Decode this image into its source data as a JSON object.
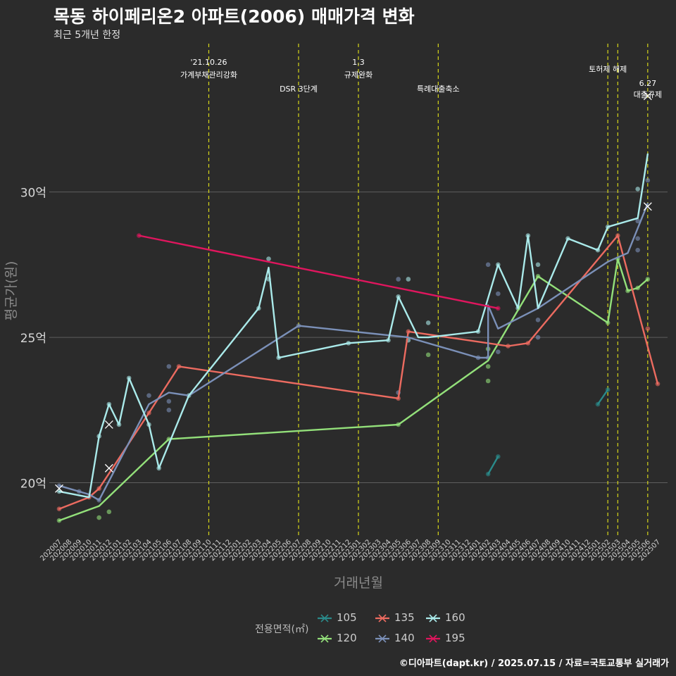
{
  "title": "목동 하이페리온2 아파트(2006) 매매가격 변화",
  "subtitle": "최근 5개년 한정",
  "caption": "©디아파트(dapt.kr) / 2025.07.15 / 자료=국토교통부 실거래가",
  "legend_title": "전용면적(㎡)",
  "chart_data": {
    "type": "line",
    "xlabel": "거래년월",
    "ylabel": "평균가(원)",
    "ylim": [
      18.1,
      35.1
    ],
    "yticks": [
      20,
      25,
      30
    ],
    "ytick_labels": [
      "20억",
      "25억",
      "30억"
    ],
    "categories": [
      "202007",
      "202008",
      "202009",
      "202010",
      "202011",
      "202012",
      "202101",
      "202102",
      "202103",
      "202104",
      "202105",
      "202106",
      "202107",
      "202108",
      "202109",
      "202110",
      "202111",
      "202112",
      "202201",
      "202202",
      "202203",
      "202204",
      "202205",
      "202206",
      "202207",
      "202208",
      "202209",
      "202210",
      "202211",
      "202212",
      "202301",
      "202302",
      "202303",
      "202304",
      "202305",
      "202306",
      "202307",
      "202308",
      "202309",
      "202310",
      "202311",
      "202312",
      "202401",
      "202402",
      "202403",
      "202404",
      "202405",
      "202406",
      "202407",
      "202408",
      "202409",
      "202410",
      "202411",
      "202412",
      "202501",
      "202502",
      "202503",
      "202504",
      "202505",
      "202506",
      "202507"
    ],
    "events": [
      {
        "month": "202110",
        "label1": "'21.10.26",
        "label2": "가계부채관리강화",
        "row": "top"
      },
      {
        "month": "202207",
        "label1": "",
        "label2": "DSR 3단계",
        "row": "low"
      },
      {
        "month": "202301",
        "label1": "1.3",
        "label2": "규제완화",
        "row": "top"
      },
      {
        "month": "202309",
        "label1": "",
        "label2": "특례대출축소",
        "row": "low"
      },
      {
        "month": "202502",
        "label1": "",
        "label2": "토허제 해제",
        "row": "mid"
      },
      {
        "month": "202503",
        "label1": "",
        "label2": "",
        "row": "none"
      },
      {
        "month": "202506",
        "label1": "6.27",
        "label2": "대출규제",
        "row": "right"
      }
    ],
    "series": [
      {
        "name": "105",
        "color": "#2a8a8a",
        "line": [
          [
            "202402",
            20.3
          ],
          [
            "202403",
            20.9
          ]
        ],
        "line2": [
          [
            "202501",
            22.7
          ],
          [
            "202502",
            23.2
          ]
        ],
        "points": [
          [
            "202402",
            20.3
          ],
          [
            "202403",
            20.9
          ],
          [
            "202501",
            22.7
          ],
          [
            "202502",
            23.2
          ]
        ],
        "crosses": []
      },
      {
        "name": "120",
        "color": "#93e07a",
        "line": [
          [
            "202007",
            18.7
          ],
          [
            "202011",
            19.2
          ],
          [
            "202106",
            21.5
          ],
          [
            "202305",
            22.0
          ],
          [
            "202402",
            24.2
          ],
          [
            "202407",
            27.1
          ],
          [
            "202502",
            25.5
          ],
          [
            "202503",
            27.7
          ],
          [
            "202504",
            26.6
          ],
          [
            "202505",
            26.7
          ],
          [
            "202506",
            27.0
          ]
        ],
        "points": [
          [
            "202007",
            18.7
          ],
          [
            "202011",
            18.8
          ],
          [
            "202012",
            19.0
          ],
          [
            "202106",
            21.5
          ],
          [
            "202305",
            22.0
          ],
          [
            "202308",
            24.4
          ],
          [
            "202402",
            23.5
          ],
          [
            "202402",
            24.0
          ],
          [
            "202402",
            24.6
          ],
          [
            "202407",
            27.1
          ],
          [
            "202502",
            25.5
          ],
          [
            "202503",
            27.7
          ],
          [
            "202504",
            26.6
          ],
          [
            "202505",
            26.7
          ],
          [
            "202506",
            27.0
          ]
        ],
        "crosses": []
      },
      {
        "name": "135",
        "color": "#ec6b60",
        "line": [
          [
            "202007",
            19.1
          ],
          [
            "202010",
            19.5
          ],
          [
            "202011",
            19.8
          ],
          [
            "202104",
            22.4
          ],
          [
            "202107",
            24.0
          ],
          [
            "202305",
            22.9
          ],
          [
            "202306",
            25.2
          ],
          [
            "202404",
            24.7
          ],
          [
            "202406",
            24.8
          ],
          [
            "202503",
            28.5
          ],
          [
            "202507",
            23.4
          ]
        ],
        "points": [
          [
            "202007",
            19.1
          ],
          [
            "202010",
            19.5
          ],
          [
            "202011",
            19.8
          ],
          [
            "202104",
            22.4
          ],
          [
            "202107",
            24.0
          ],
          [
            "202305",
            22.9
          ],
          [
            "202306",
            25.2
          ],
          [
            "202404",
            24.7
          ],
          [
            "202406",
            24.8
          ],
          [
            "202503",
            28.5
          ],
          [
            "202506",
            25.3
          ],
          [
            "202507",
            23.4
          ]
        ],
        "crosses": []
      },
      {
        "name": "140",
        "color": "#7b90b8",
        "line": [
          [
            "202007",
            19.9
          ],
          [
            "202010",
            19.6
          ],
          [
            "202011",
            19.4
          ],
          [
            "202104",
            22.7
          ],
          [
            "202106",
            23.1
          ],
          [
            "202108",
            23.0
          ],
          [
            "202207",
            25.4
          ],
          [
            "202306",
            25.0
          ],
          [
            "202401",
            24.3
          ],
          [
            "202402",
            24.3
          ],
          [
            "202402",
            26.1
          ],
          [
            "202403",
            25.3
          ],
          [
            "202407",
            26.0
          ],
          [
            "202502",
            27.6
          ],
          [
            "202504",
            27.9
          ],
          [
            "202506",
            29.6
          ]
        ],
        "points": [
          [
            "202007",
            19.9
          ],
          [
            "202009",
            19.7
          ],
          [
            "202011",
            19.4
          ],
          [
            "202104",
            23.0
          ],
          [
            "202106",
            24.0
          ],
          [
            "202106",
            22.8
          ],
          [
            "202106",
            22.5
          ],
          [
            "202207",
            25.4
          ],
          [
            "202305",
            27.0
          ],
          [
            "202305",
            23.1
          ],
          [
            "202401",
            24.3
          ],
          [
            "202402",
            24.3
          ],
          [
            "202402",
            27.5
          ],
          [
            "202403",
            26.5
          ],
          [
            "202403",
            24.5
          ],
          [
            "202407",
            25.6
          ],
          [
            "202407",
            25.0
          ],
          [
            "202505",
            28.0
          ],
          [
            "202505",
            28.4
          ],
          [
            "202505",
            29.0
          ],
          [
            "202506",
            30.4
          ]
        ],
        "crosses": []
      },
      {
        "name": "160",
        "color": "#aaeaea",
        "line": [
          [
            "202007",
            19.7
          ],
          [
            "202010",
            19.5
          ],
          [
            "202011",
            21.6
          ],
          [
            "202012",
            22.7
          ],
          [
            "202101",
            22.0
          ],
          [
            "202102",
            23.6
          ],
          [
            "202104",
            22.0
          ],
          [
            "202105",
            20.5
          ],
          [
            "202108",
            23.0
          ],
          [
            "202203",
            26.0
          ],
          [
            "202204",
            27.4
          ],
          [
            "202205",
            24.3
          ],
          [
            "202212",
            24.8
          ],
          [
            "202304",
            24.9
          ],
          [
            "202305",
            26.4
          ],
          [
            "202307",
            25.0
          ],
          [
            "202308",
            25.0
          ],
          [
            "202401",
            25.2
          ],
          [
            "202403",
            27.5
          ],
          [
            "202405",
            26.0
          ],
          [
            "202406",
            28.5
          ],
          [
            "202407",
            26.0
          ],
          [
            "202410",
            28.4
          ],
          [
            "202501",
            28.0
          ],
          [
            "202502",
            28.8
          ],
          [
            "202505",
            29.1
          ],
          [
            "202506",
            31.3
          ]
        ],
        "points": [
          [
            "202007",
            19.7
          ],
          [
            "202011",
            21.6
          ],
          [
            "202012",
            22.7
          ],
          [
            "202101",
            22.0
          ],
          [
            "202102",
            23.6
          ],
          [
            "202104",
            22.0
          ],
          [
            "202105",
            20.5
          ],
          [
            "202108",
            23.0
          ],
          [
            "202203",
            26.0
          ],
          [
            "202204",
            27.7
          ],
          [
            "202204",
            27.0
          ],
          [
            "202205",
            24.3
          ],
          [
            "202212",
            24.8
          ],
          [
            "202304",
            24.9
          ],
          [
            "202305",
            26.4
          ],
          [
            "202306",
            27.0
          ],
          [
            "202306",
            24.9
          ],
          [
            "202308",
            25.5
          ],
          [
            "202401",
            25.2
          ],
          [
            "202403",
            27.5
          ],
          [
            "202405",
            26.0
          ],
          [
            "202406",
            28.5
          ],
          [
            "202407",
            27.5
          ],
          [
            "202410",
            28.4
          ],
          [
            "202501",
            28.0
          ],
          [
            "202502",
            28.8
          ],
          [
            "202505",
            30.1
          ]
        ],
        "crosses": [
          [
            "202007",
            19.8
          ],
          [
            "202012",
            22.0
          ],
          [
            "202012",
            20.5
          ],
          [
            "202506",
            29.5
          ],
          [
            "202506",
            33.3
          ]
        ]
      },
      {
        "name": "195",
        "color": "#e0165e",
        "line": [
          [
            "202103",
            28.5
          ],
          [
            "202403",
            26.0
          ]
        ],
        "points": [
          [
            "202103",
            28.5
          ],
          [
            "202403",
            26.0
          ]
        ],
        "crosses": []
      }
    ]
  }
}
